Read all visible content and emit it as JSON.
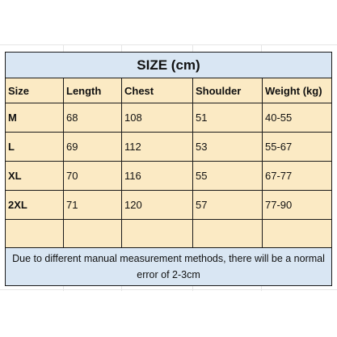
{
  "table": {
    "title": "SIZE (cm)",
    "headers": [
      "Size",
      "Length",
      "Chest",
      "Shoulder",
      "Weight (kg)"
    ],
    "rows": [
      [
        "M",
        "68",
        "108",
        "51",
        "40-55"
      ],
      [
        "L",
        "69",
        "112",
        "53",
        "55-67"
      ],
      [
        "XL",
        "70",
        "116",
        "55",
        "67-77"
      ],
      [
        "2XL",
        "71",
        "120",
        "57",
        "77-90"
      ]
    ],
    "note": "Due to different manual measurement methods, there will be a normal error of 2-3cm"
  },
  "colors": {
    "header_fill": "#d9e6f3",
    "body_fill": "#fbeac4",
    "border": "#1b1b1b"
  }
}
